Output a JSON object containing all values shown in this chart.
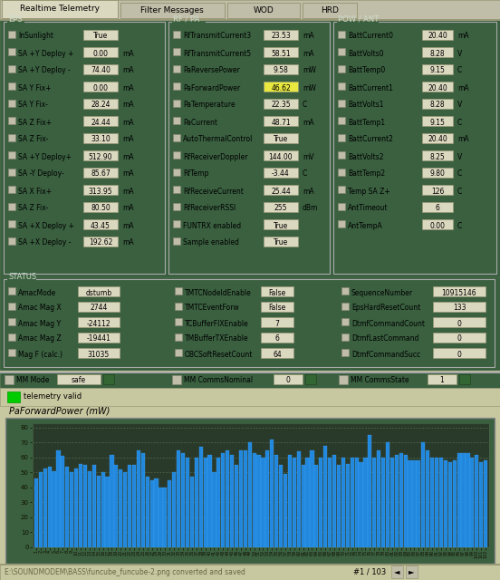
{
  "bg_color": "#c8c8a0",
  "panel_bg": "#3a6040",
  "tab_bg_active": "#dbd8c0",
  "tab_bg_inactive": "#c0bda8",
  "tab_border": "#999977",
  "field_bg": "#dbd8c0",
  "field_highlight": "#e8e840",
  "field_border": "#999977",
  "chart_outer_bg": "#3a6040",
  "chart_inner_bg": "#2a3a2a",
  "bar_color": "#2288dd",
  "bar_edge": "#44aaff",
  "grid_color": "#557755",
  "dotted_color": "#668866",
  "text_dark": "#111100",
  "text_label": "#000000",
  "text_light": "#ccddcc",
  "green_indicator": "#00cc00",
  "dark_green_btn": "#336633",
  "radio_bg": "#c0bda8",
  "tab_labels": [
    "Realtime Telemetry",
    "Filter Messages",
    "WOD",
    "HRD"
  ],
  "eps_fields": [
    [
      "InSunlight",
      "True",
      ""
    ],
    [
      "SA +Y Deploy +",
      "0.00",
      "mA"
    ],
    [
      "SA +Y Deploy -",
      "74.40",
      "mA"
    ],
    [
      "SA Y Fix+",
      "0.00",
      "mA"
    ],
    [
      "SA Y Fix-",
      "28.24",
      "mA"
    ],
    [
      "SA Z Fix+",
      "24.44",
      "mA"
    ],
    [
      "SA Z Fix-",
      "33.10",
      "mA"
    ],
    [
      "SA +Y Deploy+",
      "512.90",
      "mA"
    ],
    [
      "SA -Y Deploy-",
      "85.67",
      "mA"
    ],
    [
      "SA X Fix+",
      "313.95",
      "mA"
    ],
    [
      "SA Z Fix-",
      "80.50",
      "mA"
    ],
    [
      "SA +X Deploy +",
      "43.45",
      "mA"
    ],
    [
      "SA +X Deploy -",
      "192.62",
      "mA"
    ]
  ],
  "rf_fields": [
    [
      "RfTransmitCurrent3",
      "23.53",
      "mA"
    ],
    [
      "RfTransmitCurrent5",
      "58.51",
      "mA"
    ],
    [
      "PaReversePower",
      "9.58",
      "mW"
    ],
    [
      "PaForwardPower",
      "46.62",
      "mW"
    ],
    [
      "PaTemperature",
      "22.35",
      "C"
    ],
    [
      "PaCurrent",
      "48.71",
      "mA"
    ],
    [
      "AutoThermalControl",
      "True",
      ""
    ],
    [
      "RfReceiverDoppler",
      "144.00",
      "mV"
    ],
    [
      "RfTemp",
      "-3.44",
      "C"
    ],
    [
      "RfReceiveCurrent",
      "25.44",
      "mA"
    ],
    [
      "RfReceiverRSSI",
      "255",
      "dBm"
    ],
    [
      "FUNTRX enabled",
      "True",
      ""
    ],
    [
      "Sample enabled",
      "True",
      ""
    ]
  ],
  "rf_highlight_idx": 3,
  "pow_fields": [
    [
      "BattCurrent0",
      "20.40",
      "mA"
    ],
    [
      "BattVolts0",
      "8.28",
      "V"
    ],
    [
      "BattTemp0",
      "9.15",
      "C"
    ],
    [
      "BattCurrent1",
      "20.40",
      "mA"
    ],
    [
      "BattVolts1",
      "8.28",
      "V"
    ],
    [
      "BattTemp1",
      "9.15",
      "C"
    ],
    [
      "BattCurrent2",
      "20.40",
      "mA"
    ],
    [
      "BattVolts2",
      "8.25",
      "V"
    ],
    [
      "BattTemp2",
      "9.80",
      "C"
    ],
    [
      "Temp SA Z+",
      "126",
      "C"
    ],
    [
      "AntTimeout",
      "6",
      ""
    ],
    [
      "AntTempA",
      "0.00",
      "C"
    ]
  ],
  "status_left": [
    [
      "AmacMode",
      "dstumb"
    ],
    [
      "Amac Mag X",
      "2744"
    ],
    [
      "Amac Mag Y",
      "-24112"
    ],
    [
      "Amac Mag Z",
      "-19441"
    ],
    [
      "Mag F (calc.)",
      "31035"
    ]
  ],
  "status_mid": [
    [
      "TMTCNodeIdEnable",
      "False"
    ],
    [
      "TMTCEventForw",
      "False"
    ],
    [
      "TCBufferFIXEnable",
      "7"
    ],
    [
      "TMBufferTXEnable",
      "6"
    ],
    [
      "OBCSoftResetCount",
      "64"
    ]
  ],
  "status_right": [
    [
      "SequenceNumber",
      "10915146"
    ],
    [
      "EpsHardResetCount",
      "133"
    ],
    [
      "DtmfCommandCount",
      "0"
    ],
    [
      "DtmfLastCommand",
      "0"
    ],
    [
      "DtmfCommandSucc",
      "0"
    ]
  ],
  "mm_mode": "safe",
  "mm_comms_nominal": "0",
  "mm_comms_state": "1",
  "bar_values": [
    46,
    50,
    53,
    54,
    51,
    65,
    61,
    54,
    50,
    53,
    56,
    55,
    51,
    55,
    48,
    50,
    47,
    62,
    55,
    52,
    50,
    55,
    55,
    65,
    63,
    47,
    45,
    46,
    40,
    40,
    45,
    50,
    65,
    63,
    60,
    47,
    60,
    67,
    60,
    62,
    50,
    60,
    63,
    65,
    62,
    55,
    65,
    65,
    70,
    63,
    62,
    60,
    65,
    72,
    62,
    55,
    49,
    62,
    60,
    64,
    55,
    60,
    65,
    55,
    60,
    68,
    60,
    62,
    55,
    60,
    56,
    60,
    60,
    57,
    60,
    75,
    60,
    65,
    60,
    70,
    60,
    62,
    63,
    62,
    58,
    58,
    58,
    70,
    65,
    60,
    60,
    60,
    58,
    57,
    58,
    63,
    63,
    63,
    60,
    62,
    57,
    58
  ],
  "ylim": [
    0,
    83
  ],
  "yticks": [
    0,
    10,
    20,
    30,
    40,
    50,
    60,
    70,
    80
  ],
  "chart_title": "PaForwardPower (mW)",
  "bottom_text": "E:\\SOUNDMODEM\\BASS\\funcube_funcube-2.png converted and saved",
  "page_text": "#1 / 103"
}
